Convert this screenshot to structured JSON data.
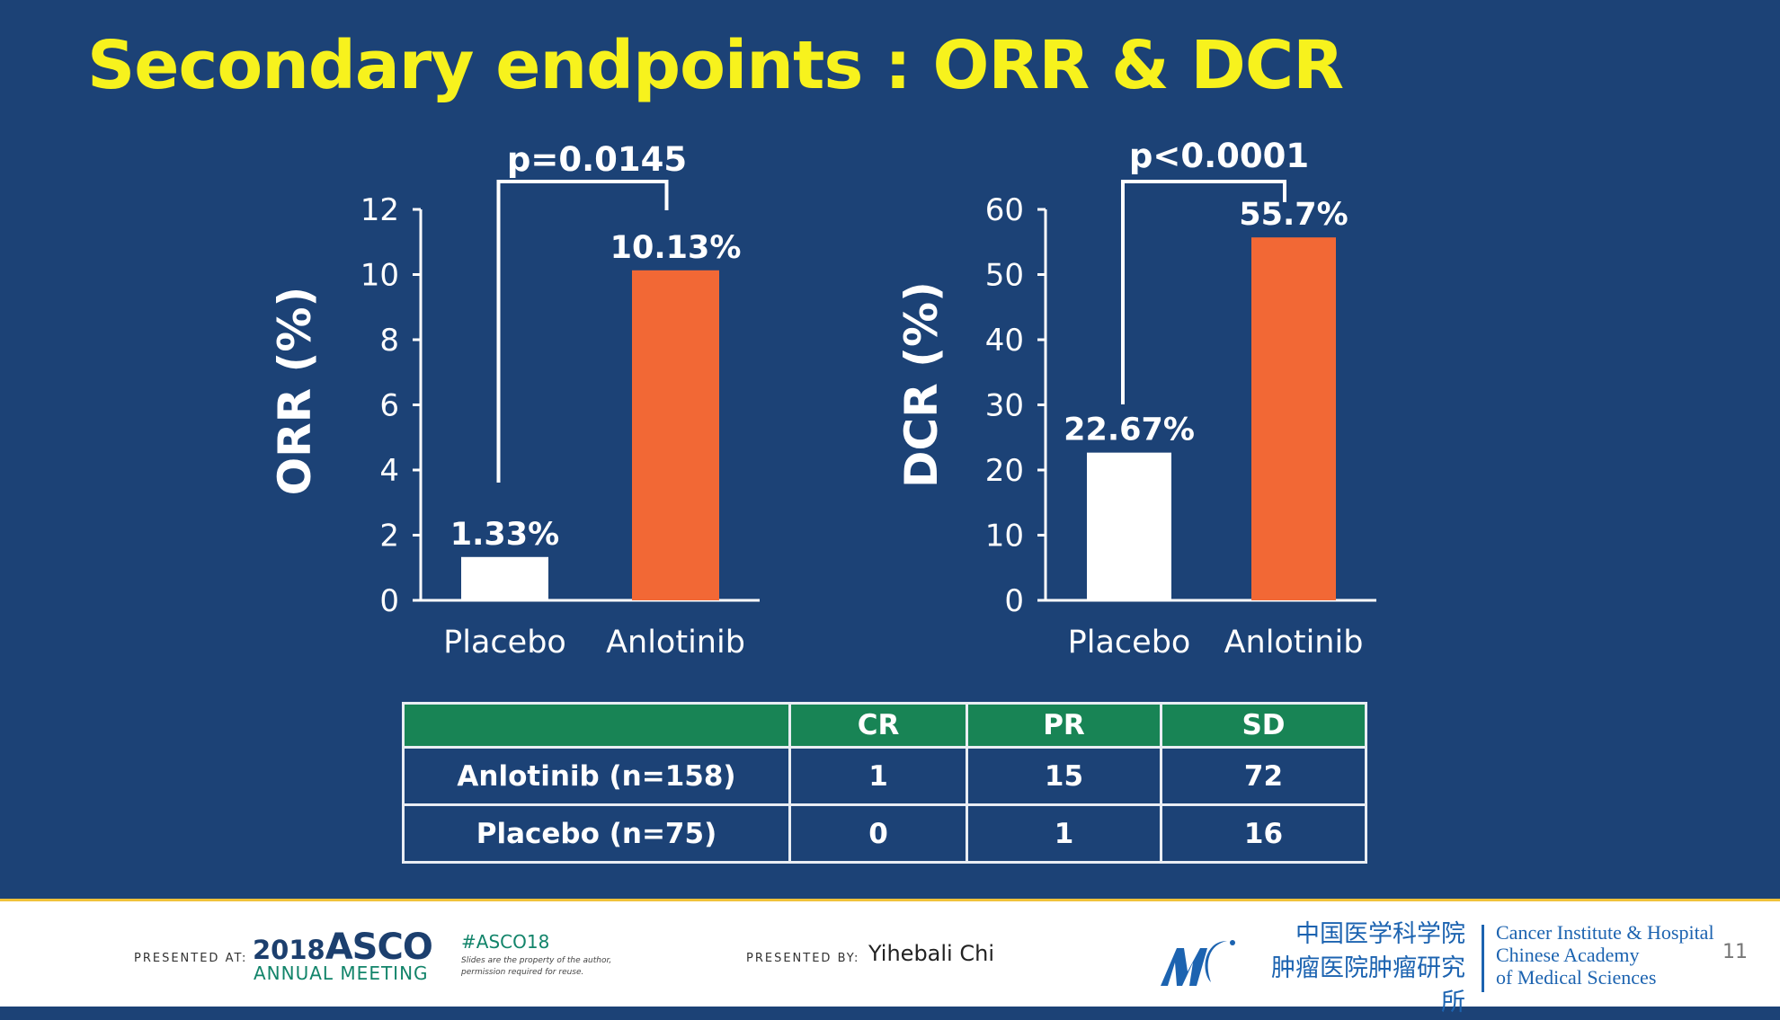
{
  "slide": {
    "title": "Secondary endpoints : ORR & DCR",
    "page_number": "11"
  },
  "colors": {
    "background": "#1c4276",
    "title": "#f7f21d",
    "placebo_bar": "#ffffff",
    "anlotinib_bar": "#f26835",
    "table_header": "#188455"
  },
  "chart_data": [
    {
      "type": "bar",
      "title": "",
      "ylabel": "ORR (%)",
      "xlabel": "",
      "categories": [
        "Placebo",
        "Anlotinib"
      ],
      "values": [
        1.33,
        10.13
      ],
      "data_labels": [
        "1.33%",
        "10.13%"
      ],
      "ylim": [
        0,
        12
      ],
      "yticks": [
        0,
        2,
        4,
        6,
        8,
        10,
        12
      ],
      "grid": false,
      "annotation": "p=0.0145"
    },
    {
      "type": "bar",
      "title": "",
      "ylabel": "DCR (%)",
      "xlabel": "",
      "categories": [
        "Placebo",
        "Anlotinib"
      ],
      "values": [
        22.67,
        55.7
      ],
      "data_labels": [
        "22.67%",
        "55.7%"
      ],
      "ylim": [
        0,
        60
      ],
      "yticks": [
        0,
        10,
        20,
        30,
        40,
        50,
        60
      ],
      "grid": false,
      "annotation": "p<0.0001"
    }
  ],
  "table": {
    "headers": [
      "",
      "CR",
      "PR",
      "SD"
    ],
    "rows": [
      {
        "label": "Anlotinib (n=158)",
        "cr": "1",
        "pr": "15",
        "sd": "72"
      },
      {
        "label": "Placebo (n=75)",
        "cr": "0",
        "pr": "1",
        "sd": "16"
      }
    ]
  },
  "footer": {
    "presented_at_label": "PRESENTED AT:",
    "asco_year": "2018",
    "asco_name": "ASCO",
    "asco_meeting": "ANNUAL MEETING",
    "hashtag": "#ASCO18",
    "disclaimer_line1": "Slides are the property of the author,",
    "disclaimer_line2": "permission required for reuse.",
    "presented_by_label": "PRESENTED BY:",
    "presenter": "Yihebali Chi",
    "institution_cn_line1": "中国医学科学院",
    "institution_cn_line2": "肿瘤医院肿瘤研究所",
    "institution_en_line1": "Cancer Institute & Hospital",
    "institution_en_line2": "Chinese Academy",
    "institution_en_line3": "of Medical Sciences"
  }
}
